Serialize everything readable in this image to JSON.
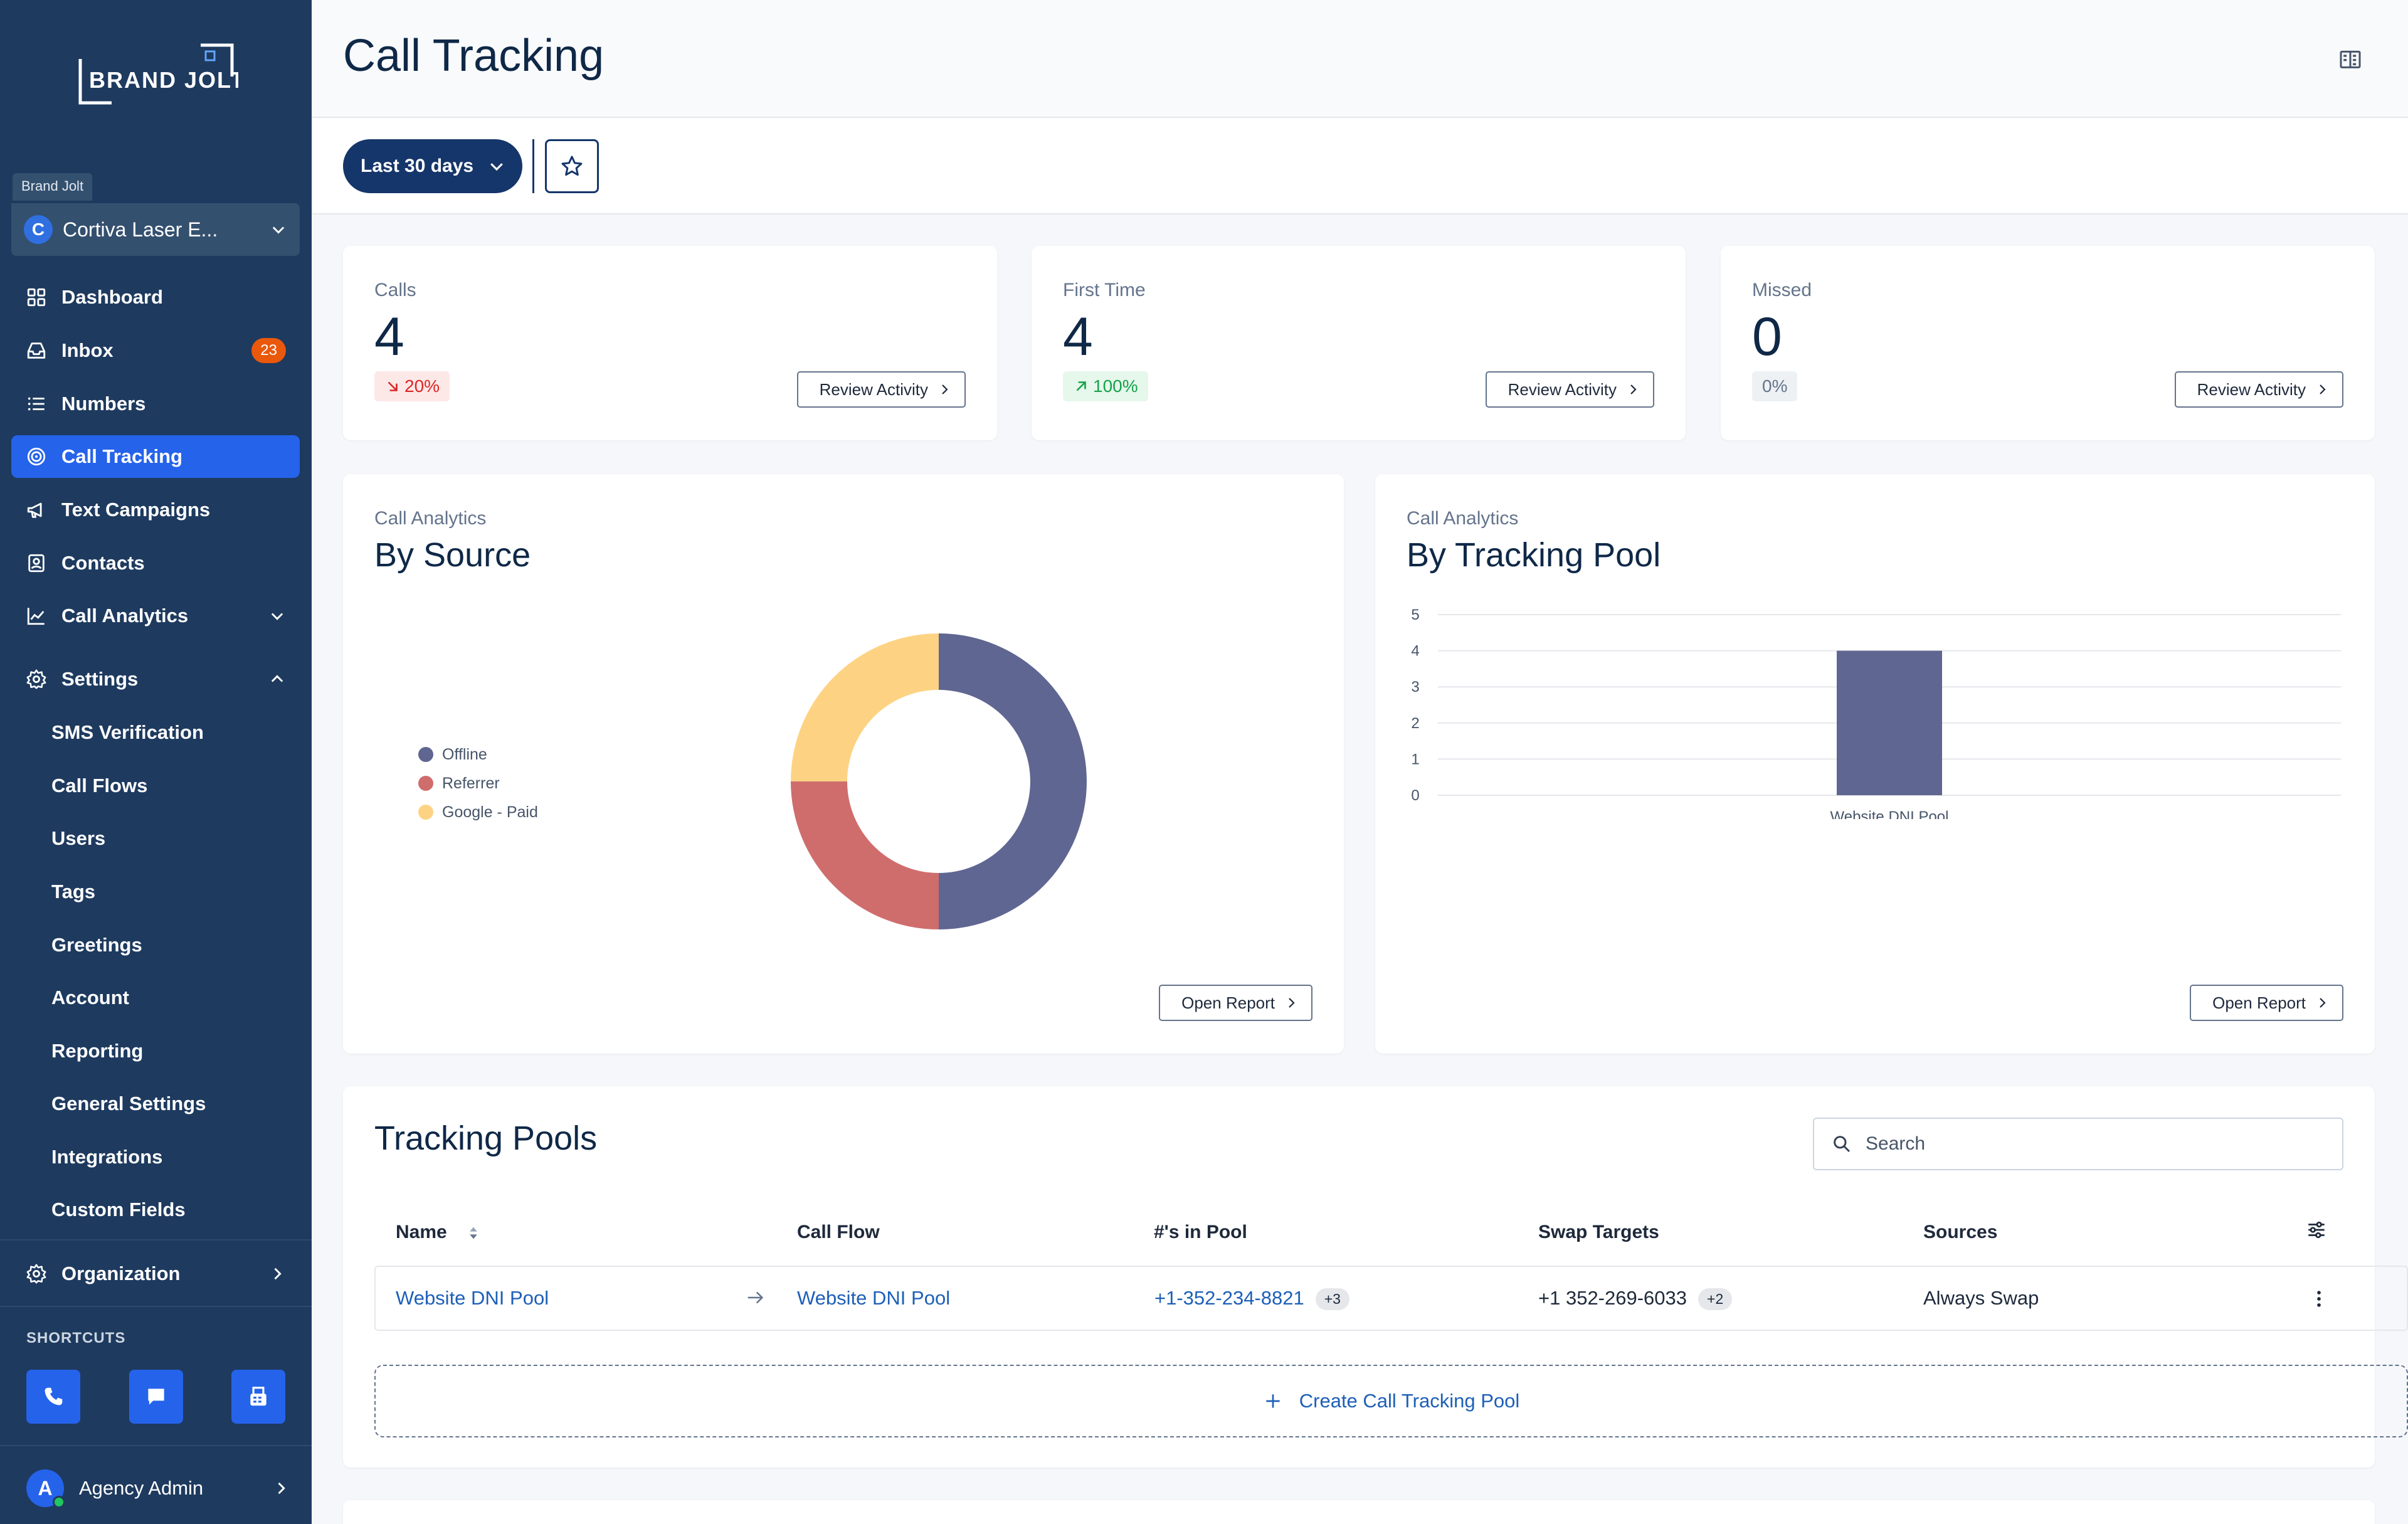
{
  "sidebar": {
    "logo_text": "BRAND JOLT",
    "brand_tag": "Brand Jolt",
    "account": {
      "initial": "C",
      "name": "Cortiva Laser E..."
    },
    "nav": [
      {
        "label": "Dashboard",
        "icon": "grid-icon"
      },
      {
        "label": "Inbox",
        "icon": "inbox-icon",
        "badge": "23"
      },
      {
        "label": "Numbers",
        "icon": "list-icon"
      },
      {
        "label": "Call Tracking",
        "icon": "target-icon",
        "active": true
      },
      {
        "label": "Text Campaigns",
        "icon": "megaphone-icon"
      },
      {
        "label": "Contacts",
        "icon": "contact-card-icon"
      },
      {
        "label": "Call Analytics",
        "icon": "line-chart-icon"
      },
      {
        "label": "Settings",
        "icon": "gear-icon"
      }
    ],
    "settings_items": [
      "SMS Verification",
      "Call Flows",
      "Users",
      "Tags",
      "Greetings",
      "Account",
      "Reporting",
      "General Settings",
      "Integrations",
      "Custom Fields"
    ],
    "organization": "Organization",
    "shortcuts_label": "SHORTCUTS",
    "user": {
      "initial": "A",
      "name": "Agency Admin"
    }
  },
  "header": {
    "title": "Call Tracking"
  },
  "toolbar": {
    "range_label": "Last 30 days"
  },
  "stats": [
    {
      "label": "Calls",
      "value": "4",
      "change": "20%",
      "trend": "down",
      "button": "Review Activity"
    },
    {
      "label": "First Time",
      "value": "4",
      "change": "100%",
      "trend": "up",
      "button": "Review Activity"
    },
    {
      "label": "Missed",
      "value": "0",
      "change": "0%",
      "trend": "neutral",
      "button": "Review Activity"
    }
  ],
  "by_source": {
    "label": "Call Analytics",
    "title": "By Source",
    "button": "Open Report"
  },
  "by_pool": {
    "label": "Call Analytics",
    "title": "By Tracking Pool",
    "button": "Open Report"
  },
  "chart_data": [
    {
      "type": "pie",
      "title": "By Source",
      "labels": [
        "Offline",
        "Referrer",
        "Google - Paid"
      ],
      "values": [
        2,
        1,
        1
      ],
      "colors": [
        "#5f6691",
        "#cf6d6d",
        "#fdd383"
      ]
    },
    {
      "type": "bar",
      "title": "By Tracking Pool",
      "categories": [
        "Website DNI Pool"
      ],
      "values": [
        4
      ],
      "ylim": [
        0,
        5
      ],
      "yticks": [
        "0",
        "1",
        "2",
        "3",
        "4",
        "5"
      ],
      "color": "#5f6691"
    }
  ],
  "tracking_pools": {
    "title": "Tracking Pools",
    "search_placeholder": "Search",
    "columns": {
      "name": "Name",
      "call_flow": "Call Flow",
      "numbers": "#'s in Pool",
      "swap_targets": "Swap Targets",
      "sources": "Sources"
    },
    "row": {
      "name": "Website DNI Pool",
      "call_flow": "Website DNI Pool",
      "number": "+1-352-234-8821",
      "number_extra": "+3",
      "swap_target": "+1 352-269-6033",
      "swap_extra": "+2",
      "source": "Always Swap"
    },
    "create_label": "Create Call Tracking Pool"
  },
  "colors": {
    "sidebar": "#1e3a5f",
    "accent": "#2563eb",
    "primary": "#15366a",
    "link": "#1d5fb8"
  }
}
